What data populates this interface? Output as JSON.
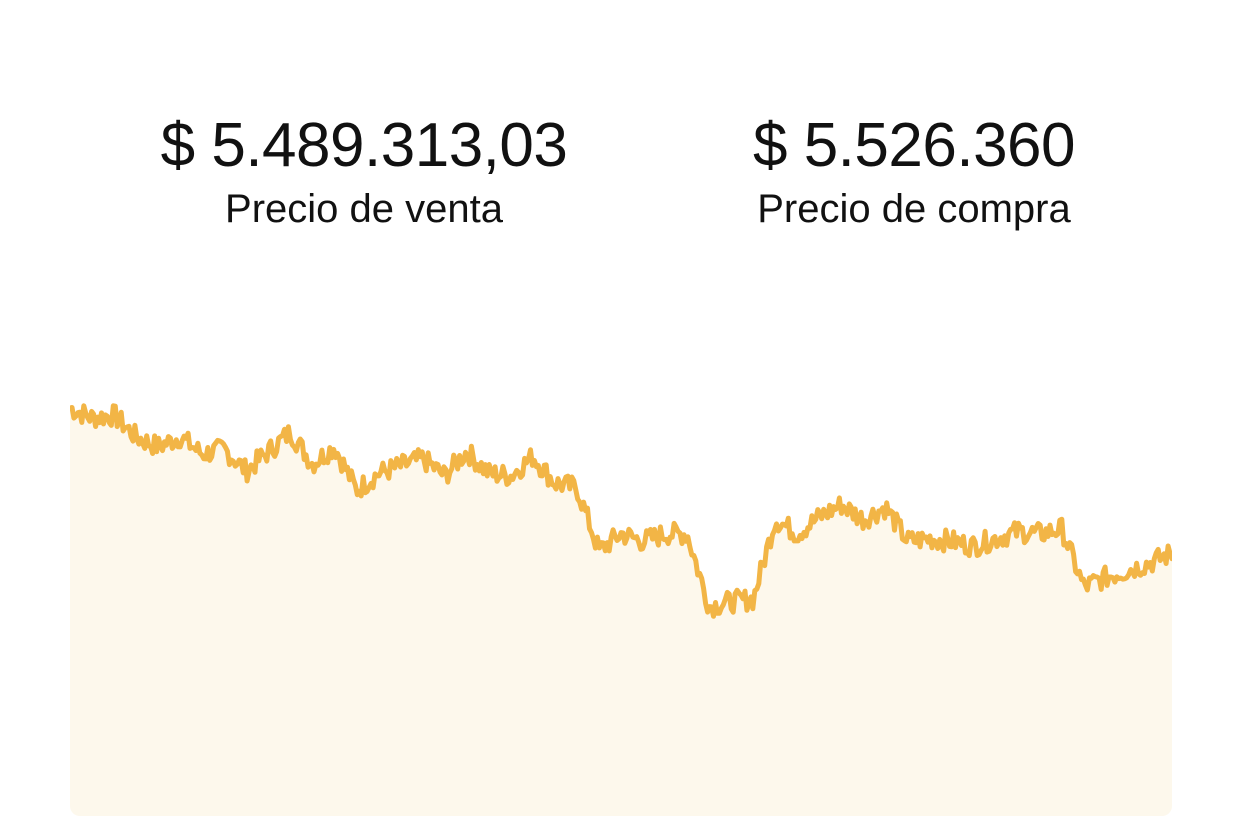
{
  "sell": {
    "value": "$ 5.489.313,03",
    "label": "Precio de venta"
  },
  "buy": {
    "value": "$ 5.526.360",
    "label": "Precio de compra"
  },
  "colors": {
    "line": "#F2B546",
    "fill": "#FDF8EC",
    "text": "#111111"
  },
  "chart_data": {
    "type": "area",
    "title": "",
    "xlabel": "",
    "ylabel": "",
    "grid": false,
    "x": [
      0,
      2,
      4,
      6,
      8,
      10,
      12,
      14,
      16,
      18,
      20,
      22,
      24,
      26,
      28,
      30,
      32,
      34,
      36,
      38,
      40,
      42,
      44,
      46,
      48,
      50,
      52,
      54,
      56,
      58,
      60,
      62,
      64,
      66,
      68,
      70,
      72,
      74,
      76,
      78,
      80,
      82,
      84,
      86,
      88,
      90,
      92,
      94,
      96,
      98,
      100
    ],
    "values": [
      100,
      96,
      97,
      88,
      84,
      88,
      81,
      83,
      74,
      82,
      90,
      77,
      84,
      66,
      73,
      76,
      79,
      72,
      82,
      73,
      72,
      80,
      69,
      67,
      41,
      48,
      45,
      48,
      48,
      18,
      20,
      21,
      54,
      48,
      55,
      60,
      54,
      59,
      45,
      46,
      45,
      43,
      46,
      49,
      48,
      50,
      26,
      30,
      33,
      36,
      40
    ],
    "ylim": [
      0,
      100
    ]
  }
}
